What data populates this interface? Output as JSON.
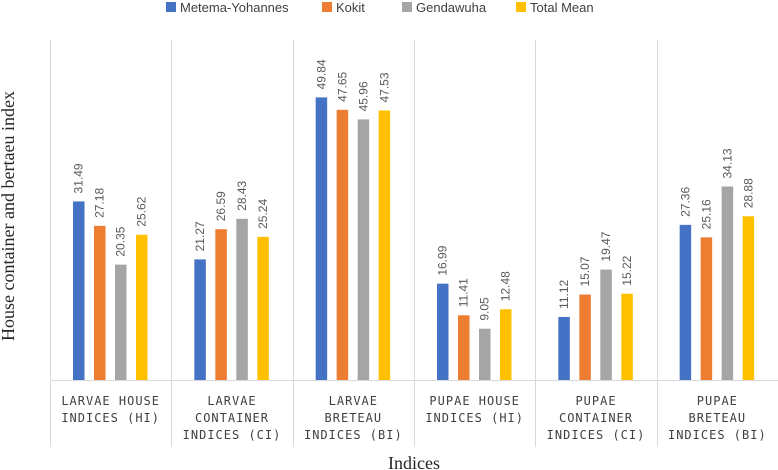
{
  "chart_data": {
    "type": "bar",
    "xlabel": "Indices",
    "ylabel": "House container and bertaeu index",
    "ylim": [
      0,
      60
    ],
    "grid": false,
    "legend_position": "top",
    "categories": [
      [
        "LARVAE HOUSE",
        "INDICES (HI)"
      ],
      [
        "LARVAE",
        "CONTAINER",
        "INDICES (CI)"
      ],
      [
        "LARVAE",
        "BRETEAU",
        "INDICES (BI)"
      ],
      [
        "PUPAE HOUSE",
        "INDICES (HI)"
      ],
      [
        "PUPAE",
        "CONTAINER",
        "INDICES (CI)"
      ],
      [
        "PUPAE",
        "BRETEAU",
        "INDICES (BI)"
      ]
    ],
    "series": [
      {
        "name": "Metema-Yohannes",
        "color": "#4472C4",
        "values": [
          31.49,
          21.27,
          49.84,
          16.99,
          11.12,
          27.36
        ]
      },
      {
        "name": "Kokit",
        "color": "#ED7D31",
        "values": [
          27.18,
          26.59,
          47.65,
          11.41,
          15.07,
          25.16
        ]
      },
      {
        "name": "Gendawuha",
        "color": "#A5A5A5",
        "values": [
          20.35,
          28.43,
          45.96,
          9.05,
          19.47,
          34.13
        ]
      },
      {
        "name": "Total Mean",
        "color": "#FFC000",
        "values": [
          25.62,
          25.24,
          47.53,
          12.48,
          15.22,
          28.88
        ]
      }
    ]
  }
}
